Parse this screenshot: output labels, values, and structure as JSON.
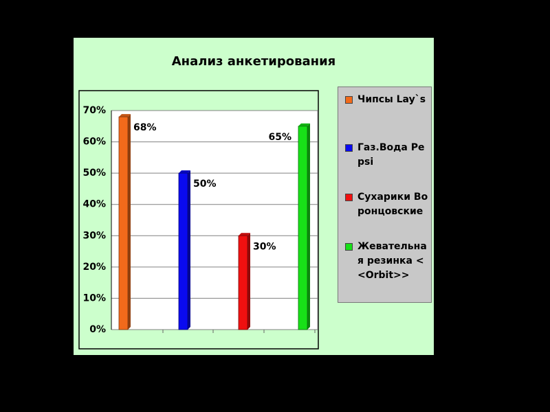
{
  "chart_data": {
    "type": "bar",
    "title": "Анализ анкетирования",
    "categories": [
      null
    ],
    "series": [
      {
        "name": "Чипсы Lay`s",
        "color": "#f26a1b",
        "values": [
          68
        ],
        "value_labels": [
          "68%"
        ]
      },
      {
        "name": "Газ.Вода Pepsi",
        "color": "#0a0af0",
        "values": [
          50
        ],
        "value_labels": [
          "50%"
        ]
      },
      {
        "name": "Сухарики Воронцовские",
        "color": "#f01010",
        "values": [
          30
        ],
        "value_labels": [
          "30%"
        ]
      },
      {
        "name": "Жевательная резинка <<Orbit>>",
        "color": "#18e018",
        "values": [
          65
        ],
        "value_labels": [
          "65%"
        ]
      }
    ],
    "ylim": [
      0,
      70
    ],
    "yticks": [
      {
        "value": 0,
        "label": "0%"
      },
      {
        "value": 10,
        "label": "10%"
      },
      {
        "value": 20,
        "label": "20%"
      },
      {
        "value": 30,
        "label": "30%"
      },
      {
        "value": 40,
        "label": "40%"
      },
      {
        "value": 50,
        "label": "50%"
      },
      {
        "value": 60,
        "label": "60%"
      },
      {
        "value": 70,
        "label": "70%"
      }
    ],
    "grid": true,
    "legend": "right"
  }
}
